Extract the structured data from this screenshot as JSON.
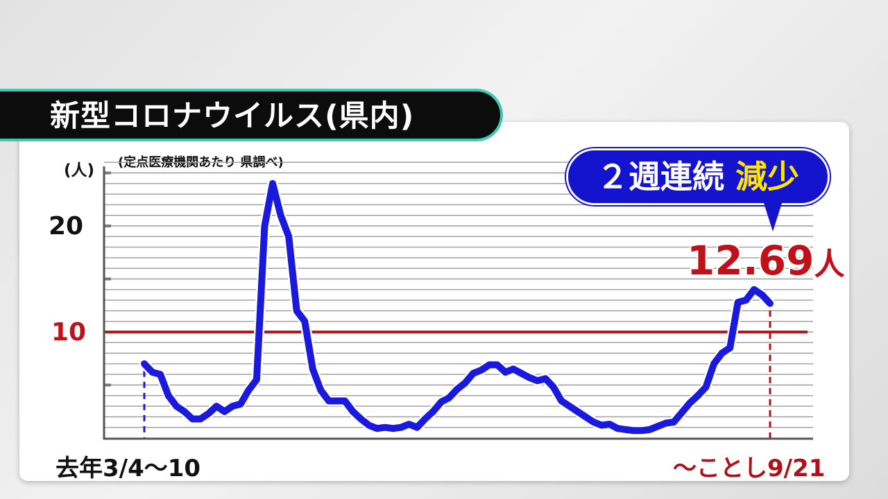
{
  "header": {
    "title": "新型コロナウイルス(県内)"
  },
  "chart_data": {
    "type": "line",
    "title": "",
    "ylabel": "(人)",
    "note": "(定点医療機関あたり 県調べ)",
    "start_label": "去年3/4〜10",
    "end_label": "〜ことし9/21",
    "ylim": [
      0,
      26
    ],
    "yticks": [
      20,
      10
    ],
    "reference_line": {
      "value": 10,
      "color": "#c0101a"
    },
    "grid": true,
    "series_color": "#1a1adc",
    "values": [
      7.0,
      6.2,
      6.0,
      4.0,
      3.0,
      2.5,
      1.8,
      1.8,
      2.3,
      3.0,
      2.5,
      3.0,
      3.2,
      4.5,
      5.5,
      20.0,
      24.0,
      21.0,
      19.0,
      12.0,
      11.0,
      6.5,
      4.5,
      3.5,
      3.5,
      3.5,
      2.5,
      1.8,
      1.2,
      0.9,
      1.0,
      0.9,
      1.0,
      1.3,
      1.0,
      1.8,
      2.5,
      3.4,
      3.8,
      4.6,
      5.2,
      6.1,
      6.4,
      6.9,
      6.9,
      6.2,
      6.5,
      6.1,
      5.7,
      5.4,
      5.6,
      4.8,
      3.5,
      3.0,
      2.5,
      2.0,
      1.5,
      1.2,
      1.3,
      0.9,
      0.8,
      0.7,
      0.7,
      0.8,
      1.1,
      1.4,
      1.5,
      2.4,
      3.3,
      4.0,
      4.8,
      7.0,
      8.0,
      8.5,
      12.8,
      13.0,
      14.0,
      13.5,
      12.69
    ],
    "callout": {
      "text": "２週連続",
      "highlight": "減少"
    },
    "latest_value": "12.69",
    "latest_unit": "人"
  }
}
